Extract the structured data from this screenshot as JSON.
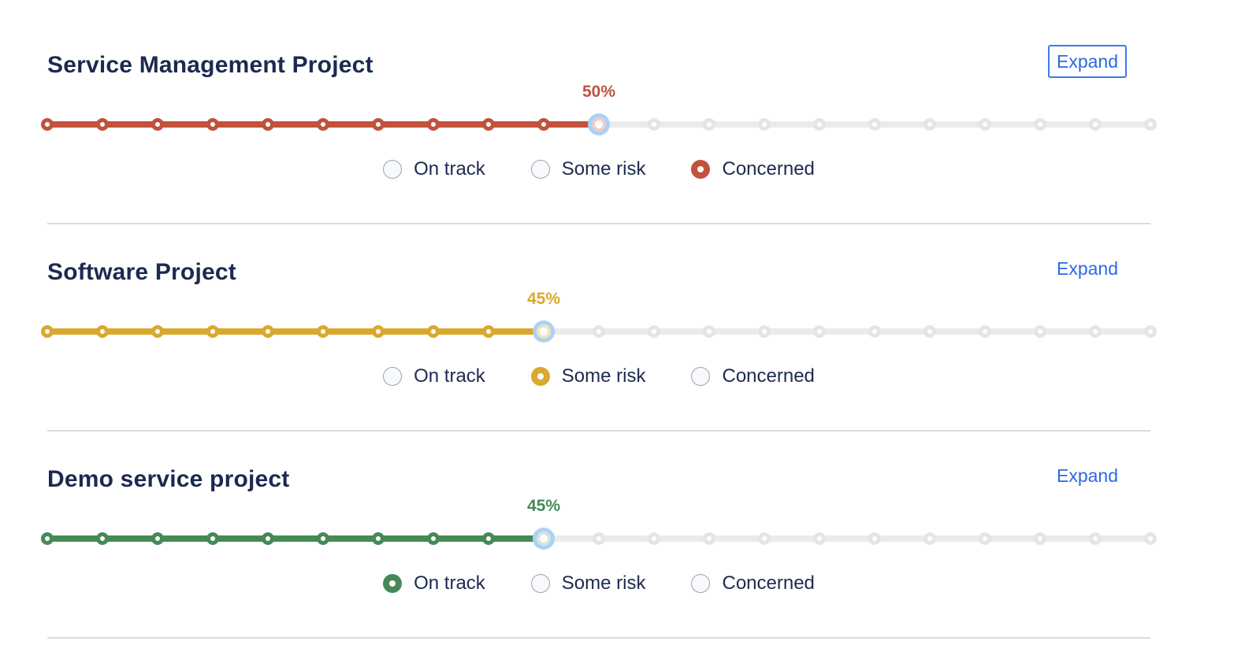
{
  "slider": {
    "min": 0,
    "max": 100,
    "step": 5
  },
  "colors": {
    "title_text": "#1C2A50",
    "label_text": "#1C2B4F",
    "expand_blue": "#2B69E5",
    "focus_ring_blue": "#3E7BE8",
    "thumb_halo_blue": "#A8D2F6",
    "track_gray": "#EBEBEB",
    "divider_gray": "#DBDBDB"
  },
  "projects": [
    {
      "title": "Service Management Project",
      "expand_label": "Expand",
      "expand_focused": true,
      "percent": 50,
      "percent_label": "50%",
      "status_value": "Concerned",
      "color": "#C2513D",
      "pale_color": "#F0CEC6",
      "options": [
        {
          "label": "On track",
          "selected": false
        },
        {
          "label": "Some risk",
          "selected": false
        },
        {
          "label": "Concerned",
          "selected": true
        }
      ]
    },
    {
      "title": "Software Project",
      "expand_label": "Expand",
      "expand_focused": false,
      "percent": 45,
      "percent_label": "45%",
      "status_value": "Some risk",
      "color": "#DBA82F",
      "pale_color": "#F2E4BB",
      "options": [
        {
          "label": "On track",
          "selected": false
        },
        {
          "label": "Some risk",
          "selected": true
        },
        {
          "label": "Concerned",
          "selected": false
        }
      ]
    },
    {
      "title": "Demo service project",
      "expand_label": "Expand",
      "expand_focused": false,
      "percent": 45,
      "percent_label": "45%",
      "status_value": "On track",
      "color": "#468957",
      "pale_color": "#D9E4D6",
      "options": [
        {
          "label": "On track",
          "selected": true
        },
        {
          "label": "Some risk",
          "selected": false
        },
        {
          "label": "Concerned",
          "selected": false
        }
      ]
    }
  ]
}
